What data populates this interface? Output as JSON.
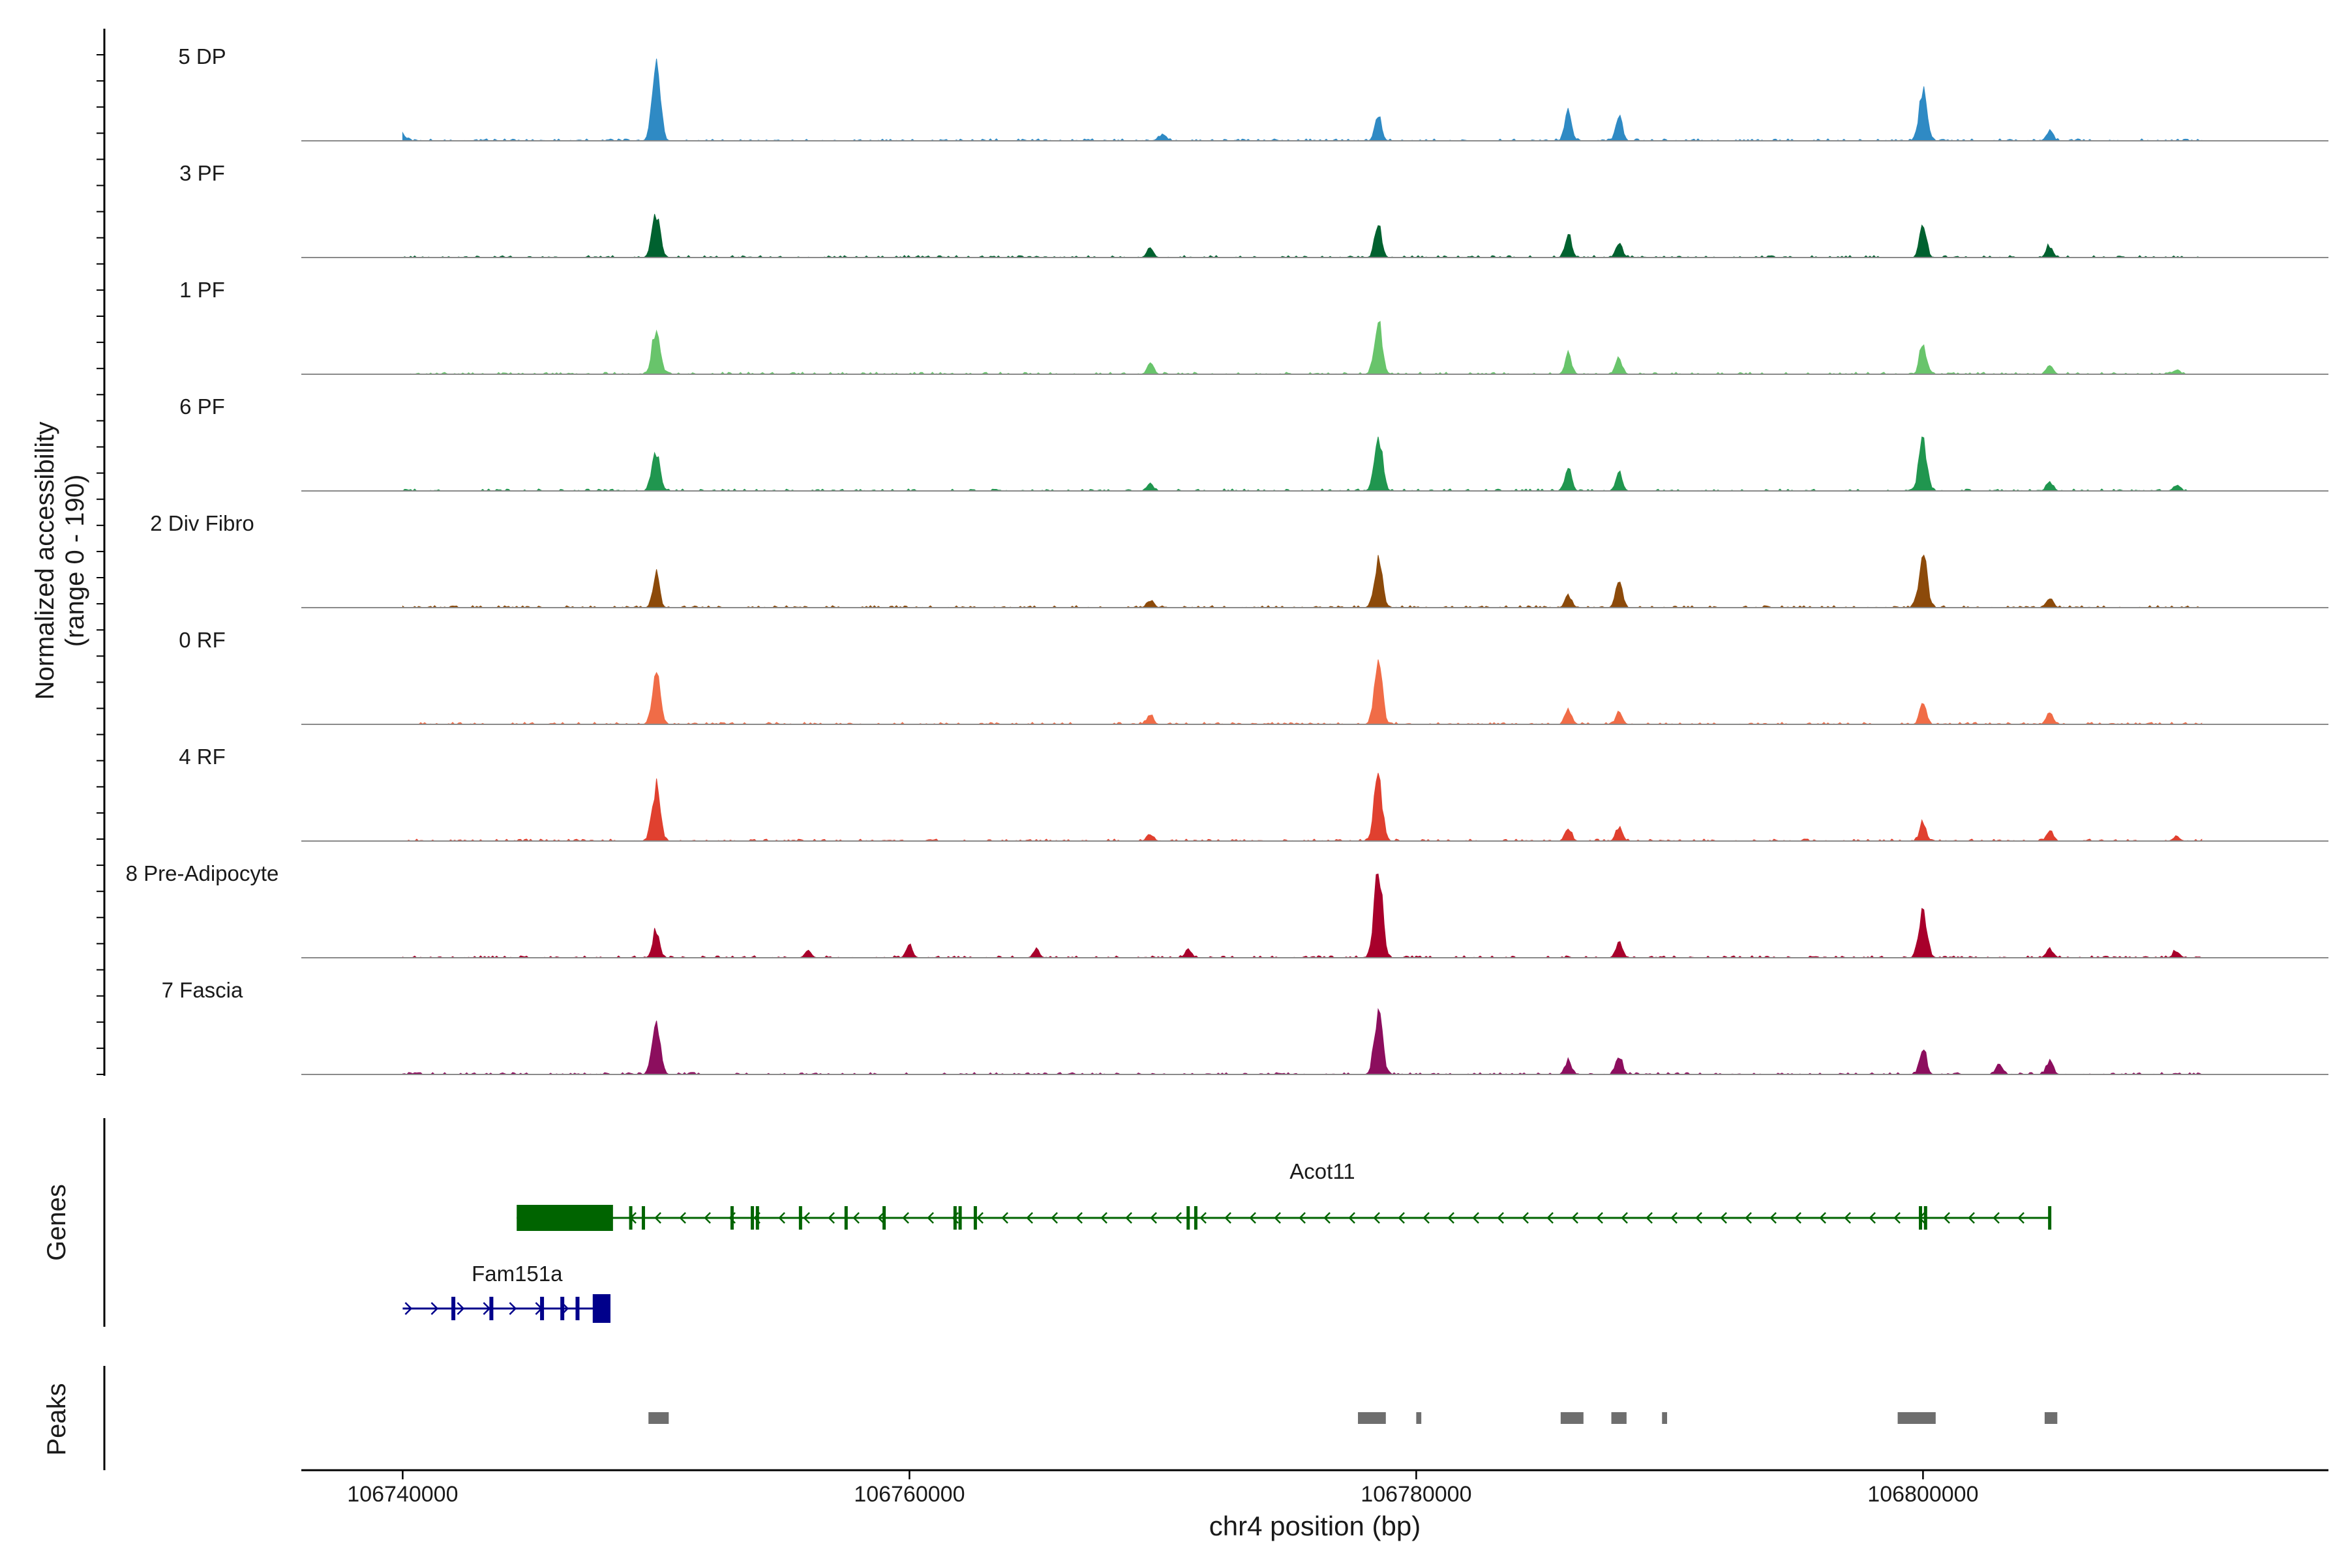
{
  "chart_data": {
    "type": "area",
    "title": "",
    "region": {
      "chromosome": "chr4",
      "start": 106736000,
      "end": 106816000
    },
    "coverage_panel": {
      "ylabel_line1": "Normalized accessibility",
      "ylabel_line2": "(range 0 - 190)",
      "ylim": [
        0,
        190
      ],
      "tracks": [
        {
          "name": "5 DP",
          "color": "#2f8ac4",
          "peaks": [
            [
              106750000,
              170
            ],
            [
              106778500,
              55
            ],
            [
              106786000,
              60
            ],
            [
              106788000,
              55
            ],
            [
              106800000,
              110
            ],
            [
              106805000,
              20
            ],
            [
              106740000,
              12
            ],
            [
              106770000,
              15
            ]
          ]
        },
        {
          "name": "3 PF",
          "color": "#00612f",
          "peaks": [
            [
              106750000,
              90
            ],
            [
              106769500,
              20
            ],
            [
              106778500,
              75
            ],
            [
              106786000,
              45
            ],
            [
              106788000,
              30
            ],
            [
              106800000,
              75
            ],
            [
              106805000,
              25
            ]
          ]
        },
        {
          "name": "1 PF",
          "color": "#68c46b",
          "peaks": [
            [
              106750000,
              95
            ],
            [
              106769500,
              20
            ],
            [
              106778500,
              110
            ],
            [
              106786000,
              45
            ],
            [
              106788000,
              35
            ],
            [
              106800000,
              70
            ],
            [
              106805000,
              20
            ],
            [
              106810000,
              10
            ]
          ]
        },
        {
          "name": "6 PF",
          "color": "#20964f",
          "peaks": [
            [
              106750000,
              85
            ],
            [
              106769500,
              15
            ],
            [
              106778500,
              115
            ],
            [
              106786000,
              45
            ],
            [
              106788000,
              35
            ],
            [
              106800000,
              105
            ],
            [
              106805000,
              20
            ],
            [
              106810000,
              12
            ]
          ]
        },
        {
          "name": "2 Div Fibro",
          "color": "#8c4a0a",
          "peaks": [
            [
              106750000,
              70
            ],
            [
              106769500,
              15
            ],
            [
              106778500,
              100
            ],
            [
              106786000,
              25
            ],
            [
              106788000,
              55
            ],
            [
              106800000,
              110
            ],
            [
              106805000,
              20
            ]
          ]
        },
        {
          "name": "0 RF",
          "color": "#f06c47",
          "peaks": [
            [
              106750000,
              105
            ],
            [
              106769500,
              20
            ],
            [
              106778500,
              130
            ],
            [
              106786000,
              30
            ],
            [
              106788000,
              25
            ],
            [
              106800000,
              50
            ],
            [
              106805000,
              25
            ]
          ]
        },
        {
          "name": "4 RF",
          "color": "#e0402f",
          "peaks": [
            [
              106750000,
              120
            ],
            [
              106769500,
              15
            ],
            [
              106778500,
              140
            ],
            [
              106786000,
              25
            ],
            [
              106788000,
              30
            ],
            [
              106800000,
              40
            ],
            [
              106805000,
              20
            ],
            [
              106810000,
              10
            ]
          ]
        },
        {
          "name": "8 Pre-Adipocyte",
          "color": "#a8002b",
          "peaks": [
            [
              106750000,
              60
            ],
            [
              106778500,
              190
            ],
            [
              106788000,
              35
            ],
            [
              106800000,
              100
            ],
            [
              106805000,
              20
            ],
            [
              106810000,
              15
            ],
            [
              106756000,
              15
            ],
            [
              106760000,
              25
            ],
            [
              106765000,
              15
            ],
            [
              106771000,
              18
            ]
          ]
        },
        {
          "name": "7 Fascia",
          "color": "#8c0e5e",
          "peaks": [
            [
              106750000,
              120
            ],
            [
              106778500,
              135
            ],
            [
              106786000,
              30
            ],
            [
              106788000,
              40
            ],
            [
              106800000,
              60
            ],
            [
              106805000,
              30
            ],
            [
              106803000,
              20
            ]
          ]
        }
      ]
    },
    "genes_panel": {
      "ylabel": "Genes",
      "genes": [
        {
          "name": "Acot11",
          "strand": "-",
          "start": 106744500,
          "end": 106805000,
          "color": "#006400"
        },
        {
          "name": "Fam151a",
          "strand": "+",
          "start": 106740000,
          "end": 106748000,
          "color": "#00008b"
        }
      ]
    },
    "peaks_panel": {
      "ylabel": "Peaks",
      "peaks": [
        [
          106749700,
          106750500
        ],
        [
          106777700,
          106778800
        ],
        [
          106780000,
          106780200
        ],
        [
          106785700,
          106786600
        ],
        [
          106787700,
          106788300
        ],
        [
          106789700,
          106789900
        ],
        [
          106799000,
          106800500
        ],
        [
          106804800,
          106805300
        ]
      ]
    },
    "xaxis": {
      "xlabel": "chr4 position (bp)",
      "ticks": [
        106740000,
        106760000,
        106780000,
        106800000
      ],
      "tick_labels": [
        "106740000",
        "106760000",
        "106780000",
        "106800000"
      ]
    }
  }
}
